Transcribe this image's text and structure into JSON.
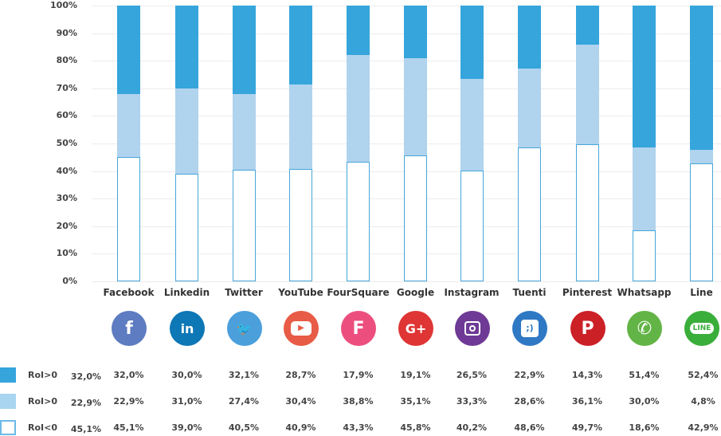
{
  "chart_data": {
    "type": "bar",
    "stacked": true,
    "title": "",
    "xlabel": "",
    "ylabel": "",
    "ylim": [
      0,
      100
    ],
    "yticks": [
      "0%",
      "10%",
      "20%",
      "30%",
      "40%",
      "50%",
      "60%",
      "70%",
      "80%",
      "90%",
      "100%"
    ],
    "categories": [
      "Facebook",
      "Linkedin",
      "Twitter",
      "YouTube",
      "FourSquare",
      "Google",
      "Instagram",
      "Tuenti",
      "Pinterest",
      "Whatsapp",
      "Line"
    ],
    "series": [
      {
        "name": "RoI<0",
        "color": "#ffffff",
        "border": "#46a6da",
        "values": [
          45.1,
          39.0,
          40.5,
          40.9,
          43.3,
          45.8,
          40.2,
          48.6,
          49.7,
          18.6,
          42.9
        ]
      },
      {
        "name": "RoI>0",
        "color": "#b0d3ee",
        "values": [
          22.9,
          31.0,
          27.4,
          30.4,
          38.8,
          35.1,
          33.3,
          28.6,
          36.1,
          30.0,
          4.8
        ]
      },
      {
        "name": "RoI>0",
        "color": "#35a5dc",
        "values": [
          32.0,
          30.0,
          32.1,
          28.7,
          17.9,
          19.1,
          26.5,
          22.9,
          14.3,
          51.4,
          52.4
        ]
      }
    ],
    "grid": true,
    "legend_position": "bottom-left table"
  },
  "table": {
    "rows": [
      {
        "label": "RoI>0",
        "color": "#35a5dc",
        "total": "32,0%",
        "values": [
          "32,0%",
          "30,0%",
          "32,1%",
          "28,7%",
          "17,9%",
          "19,1%",
          "26,5%",
          "22,9%",
          "14,3%",
          "51,4%",
          "52,4%"
        ]
      },
      {
        "label": "RoI>0",
        "color": "#a9d5f0",
        "total": "22,9%",
        "values": [
          "22,9%",
          "31,0%",
          "27,4%",
          "30,4%",
          "38,8%",
          "35,1%",
          "33,3%",
          "28,6%",
          "36,1%",
          "30,0%",
          "4,8%"
        ]
      },
      {
        "label": "RoI<0",
        "color": "#ffffff",
        "total": "45,1%",
        "values": [
          "45,1%",
          "39,0%",
          "40,5%",
          "40,9%",
          "43,3%",
          "45,8%",
          "40,2%",
          "48,6%",
          "49,7%",
          "18,6%",
          "42,9%"
        ]
      }
    ]
  },
  "icons": [
    {
      "name": "facebook-icon",
      "glyph": "f",
      "color": "#5d7cc1"
    },
    {
      "name": "linkedin-icon",
      "glyph": "in",
      "color": "#0e77b6"
    },
    {
      "name": "twitter-icon",
      "glyph": "🐦",
      "color": "#4b9fdb"
    },
    {
      "name": "youtube-icon",
      "glyph": "▶",
      "color": "#e85b46"
    },
    {
      "name": "foursquare-icon",
      "glyph": "F",
      "color": "#ec4f7e"
    },
    {
      "name": "google-plus-icon",
      "glyph": "G+",
      "color": "#e03535"
    },
    {
      "name": "instagram-icon",
      "glyph": "◙",
      "color": "#6e3a96"
    },
    {
      "name": "tuenti-icon",
      "glyph": ";)",
      "color": "#2f78c4"
    },
    {
      "name": "pinterest-icon",
      "glyph": "P",
      "color": "#cc2027"
    },
    {
      "name": "whatsapp-icon",
      "glyph": "✆",
      "color": "#63b446"
    },
    {
      "name": "line-icon",
      "glyph": "LINE",
      "color": "#3aae3a"
    }
  ]
}
